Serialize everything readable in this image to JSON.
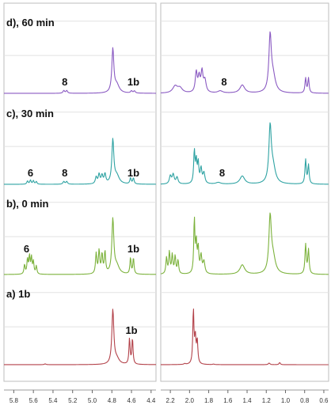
{
  "chart_data": {
    "type": "line",
    "title": "",
    "xlabel": "",
    "ylabel": "",
    "x_reversed": true,
    "panels": [
      {
        "name": "left",
        "xlim": [
          5.9,
          4.35
        ],
        "ticks": [
          "5.8",
          "5.6",
          "5.4",
          "5.2",
          "5.0",
          "4.8",
          "4.6",
          "4.4"
        ]
      },
      {
        "name": "right",
        "xlim": [
          2.3,
          0.55
        ],
        "ticks": [
          "2.2",
          "2.0",
          "1.8",
          "1.6",
          "1.4",
          "1.2",
          "1.0",
          "0.8",
          "0.6"
        ]
      }
    ],
    "series": [
      {
        "name": "d), 60 min",
        "color": "#8a5ac2",
        "peaks": [
          {
            "x": 5.29,
            "h": 0.1,
            "w": 0.01
          },
          {
            "x": 5.26,
            "h": 0.1,
            "w": 0.01
          },
          {
            "x": 4.79,
            "h": 1.6,
            "w": 0.012
          },
          {
            "x": 4.75,
            "h": 0.3,
            "w": 0.03
          },
          {
            "x": 4.6,
            "h": 0.08,
            "w": 0.01
          },
          {
            "x": 4.57,
            "h": 0.08,
            "w": 0.01
          },
          {
            "x": 2.15,
            "h": 0.25,
            "w": 0.03
          },
          {
            "x": 2.1,
            "h": 0.18,
            "w": 0.03
          },
          {
            "x": 1.93,
            "h": 0.75,
            "w": 0.012
          },
          {
            "x": 1.9,
            "h": 0.55,
            "w": 0.012
          },
          {
            "x": 1.87,
            "h": 0.75,
            "w": 0.012
          },
          {
            "x": 1.84,
            "h": 0.45,
            "w": 0.015
          },
          {
            "x": 1.68,
            "h": 0.08,
            "w": 0.03
          },
          {
            "x": 1.45,
            "h": 0.3,
            "w": 0.03
          },
          {
            "x": 1.16,
            "h": 2.0,
            "w": 0.015
          },
          {
            "x": 1.13,
            "h": 0.6,
            "w": 0.03
          },
          {
            "x": 0.79,
            "h": 0.55,
            "w": 0.008
          },
          {
            "x": 0.76,
            "h": 0.55,
            "w": 0.008
          }
        ],
        "labels": [
          {
            "text": "8",
            "x": 5.28,
            "y": 0.3
          },
          {
            "text": "1b",
            "x": 4.58,
            "y": 0.3
          },
          {
            "text": "8",
            "x": 1.64,
            "y": 0.3
          }
        ]
      },
      {
        "name": "c), 30 min",
        "color": "#2fa3a3",
        "peaks": [
          {
            "x": 5.66,
            "h": 0.12,
            "w": 0.008
          },
          {
            "x": 5.63,
            "h": 0.15,
            "w": 0.008
          },
          {
            "x": 5.6,
            "h": 0.13,
            "w": 0.008
          },
          {
            "x": 5.57,
            "h": 0.1,
            "w": 0.008
          },
          {
            "x": 5.29,
            "h": 0.1,
            "w": 0.01
          },
          {
            "x": 5.26,
            "h": 0.1,
            "w": 0.01
          },
          {
            "x": 4.96,
            "h": 0.25,
            "w": 0.01
          },
          {
            "x": 4.93,
            "h": 0.35,
            "w": 0.01
          },
          {
            "x": 4.9,
            "h": 0.3,
            "w": 0.01
          },
          {
            "x": 4.87,
            "h": 0.35,
            "w": 0.01
          },
          {
            "x": 4.79,
            "h": 1.6,
            "w": 0.012
          },
          {
            "x": 4.75,
            "h": 0.3,
            "w": 0.03
          },
          {
            "x": 4.61,
            "h": 0.22,
            "w": 0.008
          },
          {
            "x": 4.58,
            "h": 0.22,
            "w": 0.008
          },
          {
            "x": 2.2,
            "h": 0.3,
            "w": 0.012
          },
          {
            "x": 2.17,
            "h": 0.35,
            "w": 0.012
          },
          {
            "x": 2.13,
            "h": 0.25,
            "w": 0.012
          },
          {
            "x": 1.95,
            "h": 1.2,
            "w": 0.008
          },
          {
            "x": 1.93,
            "h": 0.8,
            "w": 0.008
          },
          {
            "x": 1.91,
            "h": 0.75,
            "w": 0.008
          },
          {
            "x": 1.88,
            "h": 0.55,
            "w": 0.01
          },
          {
            "x": 1.85,
            "h": 0.4,
            "w": 0.012
          },
          {
            "x": 1.7,
            "h": 0.06,
            "w": 0.03
          },
          {
            "x": 1.45,
            "h": 0.3,
            "w": 0.03
          },
          {
            "x": 1.16,
            "h": 2.0,
            "w": 0.015
          },
          {
            "x": 1.13,
            "h": 0.6,
            "w": 0.03
          },
          {
            "x": 0.79,
            "h": 0.9,
            "w": 0.008
          },
          {
            "x": 0.76,
            "h": 0.7,
            "w": 0.008
          }
        ],
        "labels": [
          {
            "text": "6",
            "x": 5.63,
            "y": 0.3
          },
          {
            "text": "8",
            "x": 5.28,
            "y": 0.3
          },
          {
            "text": "1b",
            "x": 4.58,
            "y": 0.3
          },
          {
            "text": "8",
            "x": 1.66,
            "y": 0.3
          }
        ]
      },
      {
        "name": "b), 0 min",
        "color": "#7cb23c",
        "peaks": [
          {
            "x": 5.69,
            "h": 0.35,
            "w": 0.007
          },
          {
            "x": 5.66,
            "h": 0.55,
            "w": 0.007
          },
          {
            "x": 5.64,
            "h": 0.65,
            "w": 0.007
          },
          {
            "x": 5.62,
            "h": 0.6,
            "w": 0.007
          },
          {
            "x": 5.6,
            "h": 0.45,
            "w": 0.007
          },
          {
            "x": 5.57,
            "h": 0.3,
            "w": 0.007
          },
          {
            "x": 4.96,
            "h": 0.75,
            "w": 0.008
          },
          {
            "x": 4.93,
            "h": 0.85,
            "w": 0.008
          },
          {
            "x": 4.9,
            "h": 0.7,
            "w": 0.008
          },
          {
            "x": 4.87,
            "h": 0.8,
            "w": 0.008
          },
          {
            "x": 4.79,
            "h": 2.0,
            "w": 0.012
          },
          {
            "x": 4.75,
            "h": 0.3,
            "w": 0.03
          },
          {
            "x": 4.61,
            "h": 0.6,
            "w": 0.007
          },
          {
            "x": 4.58,
            "h": 0.6,
            "w": 0.007
          },
          {
            "x": 2.24,
            "h": 0.6,
            "w": 0.008
          },
          {
            "x": 2.21,
            "h": 0.8,
            "w": 0.008
          },
          {
            "x": 2.18,
            "h": 0.7,
            "w": 0.008
          },
          {
            "x": 2.15,
            "h": 0.65,
            "w": 0.008
          },
          {
            "x": 2.12,
            "h": 0.5,
            "w": 0.008
          },
          {
            "x": 1.95,
            "h": 2.0,
            "w": 0.007
          },
          {
            "x": 1.93,
            "h": 1.1,
            "w": 0.008
          },
          {
            "x": 1.91,
            "h": 0.9,
            "w": 0.008
          },
          {
            "x": 1.88,
            "h": 0.65,
            "w": 0.01
          },
          {
            "x": 1.85,
            "h": 0.45,
            "w": 0.012
          },
          {
            "x": 1.45,
            "h": 0.35,
            "w": 0.03
          },
          {
            "x": 1.16,
            "h": 2.0,
            "w": 0.015
          },
          {
            "x": 1.13,
            "h": 0.6,
            "w": 0.03
          },
          {
            "x": 0.79,
            "h": 1.1,
            "w": 0.008
          },
          {
            "x": 0.76,
            "h": 0.9,
            "w": 0.008
          }
        ],
        "labels": [
          {
            "text": "6",
            "x": 5.67,
            "y": 0.82
          },
          {
            "text": "1b",
            "x": 4.58,
            "y": 0.82
          }
        ]
      },
      {
        "name": "a) 1b",
        "color": "#b3424a",
        "peaks": [
          {
            "x": 5.48,
            "h": 0.03,
            "w": 0.01
          },
          {
            "x": 4.79,
            "h": 2.0,
            "w": 0.012
          },
          {
            "x": 4.75,
            "h": 0.2,
            "w": 0.03
          },
          {
            "x": 4.62,
            "h": 0.95,
            "w": 0.007
          },
          {
            "x": 4.59,
            "h": 0.95,
            "w": 0.007
          },
          {
            "x": 2.05,
            "h": 0.03,
            "w": 0.01
          },
          {
            "x": 1.96,
            "h": 2.0,
            "w": 0.007
          },
          {
            "x": 1.94,
            "h": 0.95,
            "w": 0.008
          },
          {
            "x": 1.92,
            "h": 0.85,
            "w": 0.008
          },
          {
            "x": 1.75,
            "h": 0.02,
            "w": 0.01
          },
          {
            "x": 1.17,
            "h": 0.06,
            "w": 0.01
          },
          {
            "x": 1.06,
            "h": 0.08,
            "w": 0.008
          }
        ],
        "labels": [
          {
            "text": "1b",
            "x": 4.6,
            "y": 1.15
          }
        ]
      }
    ]
  }
}
